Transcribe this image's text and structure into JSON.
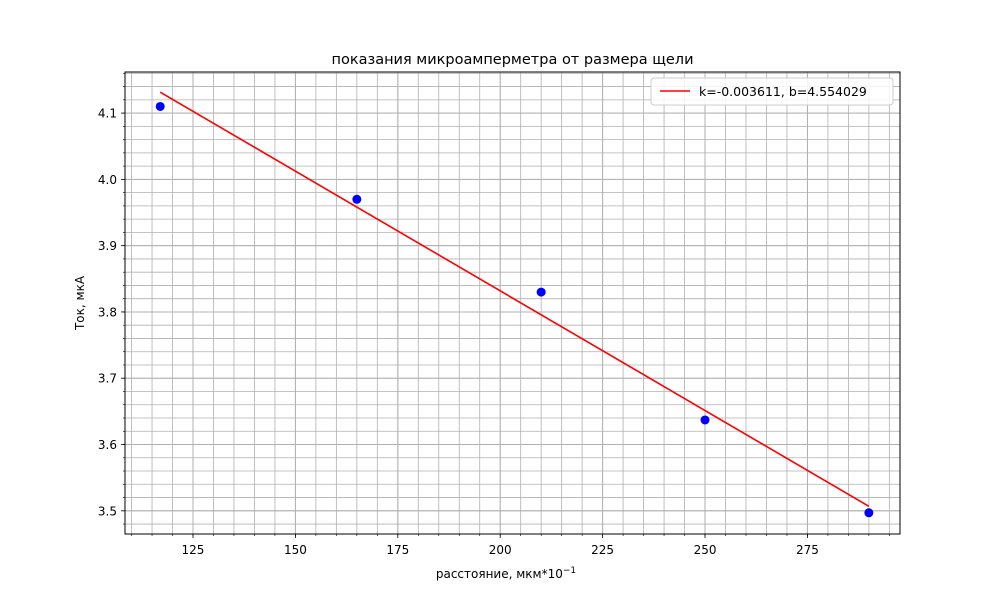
{
  "chart_data": {
    "type": "scatter",
    "title": "показания микроамперметра от размера щели",
    "xlabel_main": "расстояние, мкм*10",
    "xlabel_sup": "−1",
    "ylabel": "Ток, мкА",
    "xlim": [
      108.4,
      297.6
    ],
    "ylim": [
      3.465,
      4.162
    ],
    "x_ticks": [
      125,
      150,
      175,
      200,
      225,
      250,
      275
    ],
    "x_tick_labels": [
      "125",
      "150",
      "175",
      "200",
      "225",
      "250",
      "275"
    ],
    "y_ticks": [
      3.5,
      3.6,
      3.7,
      3.8,
      3.9,
      4.0,
      4.1
    ],
    "y_tick_labels": [
      "3.5",
      "3.6",
      "3.7",
      "3.8",
      "3.9",
      "4.0",
      "4.1"
    ],
    "x_minor_step": 5,
    "y_minor_step": 0.02,
    "grid": "major and minor",
    "legend_position": "top-right",
    "points": {
      "x": [
        117,
        165,
        210,
        250,
        290
      ],
      "y": [
        4.11,
        3.97,
        3.83,
        3.637,
        3.497
      ],
      "color": "#0000ff"
    },
    "fit_line": {
      "name": "k=-0.003611, b=4.554029",
      "k": -0.003611,
      "b": 4.554029,
      "x_range": [
        117,
        290
      ],
      "color": "#ff0000"
    }
  }
}
